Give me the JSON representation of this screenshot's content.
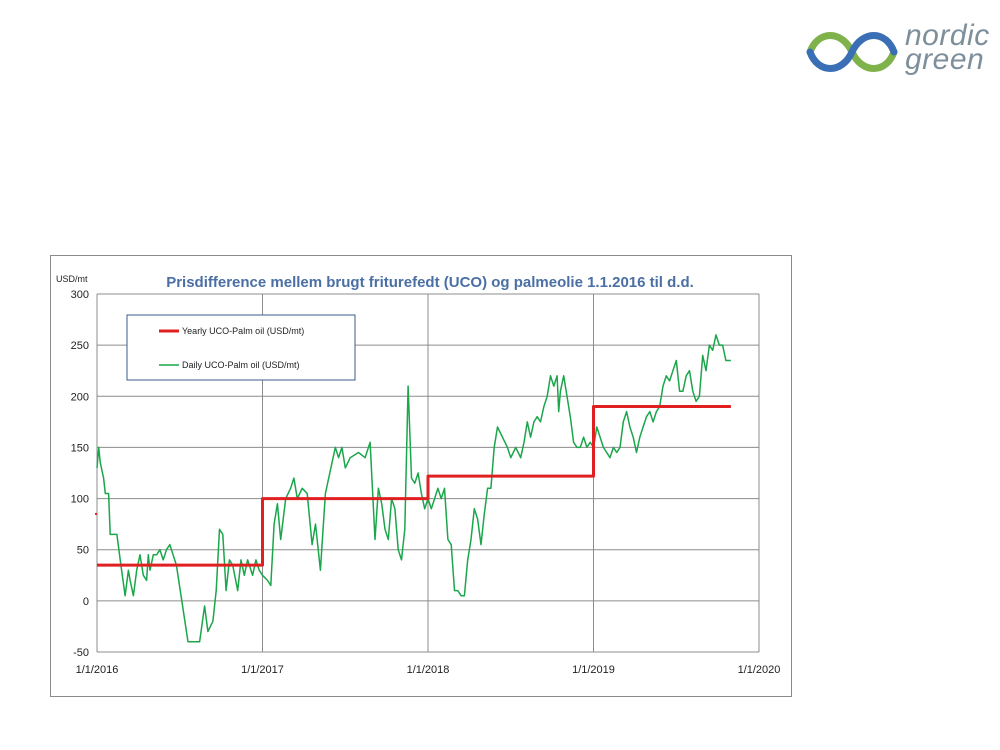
{
  "logo": {
    "line1": "nordic",
    "line2": "green"
  },
  "colors": {
    "yearly": "#e02020",
    "daily": "#1aa64a",
    "title": "#4a6fa5",
    "grid": "#8c8c8c",
    "legend_border": "#3b5b8c"
  },
  "chart_data": {
    "type": "line",
    "title": "Prisdifference mellem brugt friturefedt (UCO) og palmeolie 1.1.2016 til d.d.",
    "ylabel": "USD/mt",
    "xlabel": "",
    "ylim": [
      -50,
      300
    ],
    "yticks": [
      -50,
      0,
      50,
      100,
      150,
      200,
      250,
      300
    ],
    "xlim": [
      2016.0,
      2020.0
    ],
    "xticks": [
      {
        "v": 2016.0,
        "label": "1/1/2016"
      },
      {
        "v": 2017.0,
        "label": "1/1/2017"
      },
      {
        "v": 2018.0,
        "label": "1/1/2018"
      },
      {
        "v": 2019.0,
        "label": "1/1/2019"
      },
      {
        "v": 2020.0,
        "label": "1/1/2020"
      }
    ],
    "grid": true,
    "legend": "top-left",
    "series": [
      {
        "name": "Yearly UCO-Palm oil (USD/mt)",
        "step": true,
        "points": [
          [
            2016.0,
            35
          ],
          [
            2017.0,
            35
          ],
          [
            2017.0,
            100
          ],
          [
            2018.0,
            100
          ],
          [
            2018.0,
            122
          ],
          [
            2019.0,
            122
          ],
          [
            2019.0,
            190
          ],
          [
            2019.83,
            190
          ]
        ]
      },
      {
        "name": "Daily UCO-Palm oil (USD/mt)",
        "points": [
          [
            2016.0,
            130
          ],
          [
            2016.01,
            150
          ],
          [
            2016.02,
            135
          ],
          [
            2016.04,
            120
          ],
          [
            2016.05,
            105
          ],
          [
            2016.07,
            105
          ],
          [
            2016.08,
            65
          ],
          [
            2016.12,
            65
          ],
          [
            2016.14,
            40
          ],
          [
            2016.17,
            5
          ],
          [
            2016.19,
            30
          ],
          [
            2016.2,
            20
          ],
          [
            2016.22,
            5
          ],
          [
            2016.24,
            30
          ],
          [
            2016.26,
            45
          ],
          [
            2016.28,
            25
          ],
          [
            2016.3,
            20
          ],
          [
            2016.31,
            45
          ],
          [
            2016.32,
            30
          ],
          [
            2016.34,
            45
          ],
          [
            2016.36,
            45
          ],
          [
            2016.38,
            50
          ],
          [
            2016.4,
            40
          ],
          [
            2016.42,
            50
          ],
          [
            2016.44,
            55
          ],
          [
            2016.46,
            45
          ],
          [
            2016.48,
            35
          ],
          [
            2016.55,
            -40
          ],
          [
            2016.62,
            -40
          ],
          [
            2016.65,
            -5
          ],
          [
            2016.67,
            -30
          ],
          [
            2016.7,
            -20
          ],
          [
            2016.72,
            10
          ],
          [
            2016.74,
            70
          ],
          [
            2016.76,
            65
          ],
          [
            2016.78,
            10
          ],
          [
            2016.8,
            40
          ],
          [
            2016.82,
            35
          ],
          [
            2016.85,
            10
          ],
          [
            2016.87,
            40
          ],
          [
            2016.89,
            25
          ],
          [
            2016.91,
            40
          ],
          [
            2016.94,
            25
          ],
          [
            2016.96,
            40
          ],
          [
            2016.98,
            30
          ],
          [
            2017.0,
            25
          ],
          [
            2017.03,
            20
          ],
          [
            2017.05,
            15
          ],
          [
            2017.07,
            75
          ],
          [
            2017.09,
            95
          ],
          [
            2017.11,
            60
          ],
          [
            2017.14,
            100
          ],
          [
            2017.17,
            110
          ],
          [
            2017.19,
            120
          ],
          [
            2017.21,
            100
          ],
          [
            2017.24,
            110
          ],
          [
            2017.27,
            105
          ],
          [
            2017.3,
            55
          ],
          [
            2017.32,
            75
          ],
          [
            2017.35,
            30
          ],
          [
            2017.38,
            105
          ],
          [
            2017.4,
            120
          ],
          [
            2017.44,
            150
          ],
          [
            2017.46,
            140
          ],
          [
            2017.48,
            150
          ],
          [
            2017.5,
            130
          ],
          [
            2017.53,
            140
          ],
          [
            2017.58,
            145
          ],
          [
            2017.62,
            140
          ],
          [
            2017.65,
            155
          ],
          [
            2017.68,
            60
          ],
          [
            2017.7,
            110
          ],
          [
            2017.72,
            95
          ],
          [
            2017.74,
            70
          ],
          [
            2017.76,
            60
          ],
          [
            2017.78,
            100
          ],
          [
            2017.8,
            90
          ],
          [
            2017.82,
            50
          ],
          [
            2017.84,
            40
          ],
          [
            2017.86,
            70
          ],
          [
            2017.88,
            210
          ],
          [
            2017.9,
            120
          ],
          [
            2017.92,
            115
          ],
          [
            2017.94,
            125
          ],
          [
            2017.96,
            105
          ],
          [
            2017.98,
            90
          ],
          [
            2018.0,
            100
          ],
          [
            2018.02,
            90
          ],
          [
            2018.04,
            100
          ],
          [
            2018.06,
            110
          ],
          [
            2018.08,
            100
          ],
          [
            2018.1,
            110
          ],
          [
            2018.12,
            60
          ],
          [
            2018.14,
            55
          ],
          [
            2018.16,
            10
          ],
          [
            2018.18,
            10
          ],
          [
            2018.2,
            5
          ],
          [
            2018.22,
            5
          ],
          [
            2018.24,
            40
          ],
          [
            2018.26,
            60
          ],
          [
            2018.28,
            90
          ],
          [
            2018.3,
            80
          ],
          [
            2018.32,
            55
          ],
          [
            2018.34,
            85
          ],
          [
            2018.36,
            110
          ],
          [
            2018.38,
            110
          ],
          [
            2018.4,
            150
          ],
          [
            2018.42,
            170
          ],
          [
            2018.45,
            160
          ],
          [
            2018.48,
            150
          ],
          [
            2018.5,
            140
          ],
          [
            2018.53,
            150
          ],
          [
            2018.56,
            140
          ],
          [
            2018.58,
            155
          ],
          [
            2018.6,
            175
          ],
          [
            2018.62,
            160
          ],
          [
            2018.64,
            175
          ],
          [
            2018.66,
            180
          ],
          [
            2018.68,
            175
          ],
          [
            2018.7,
            190
          ],
          [
            2018.72,
            200
          ],
          [
            2018.74,
            220
          ],
          [
            2018.76,
            210
          ],
          [
            2018.78,
            220
          ],
          [
            2018.79,
            185
          ],
          [
            2018.8,
            205
          ],
          [
            2018.82,
            220
          ],
          [
            2018.84,
            200
          ],
          [
            2018.86,
            180
          ],
          [
            2018.88,
            155
          ],
          [
            2018.9,
            150
          ],
          [
            2018.92,
            150
          ],
          [
            2018.94,
            160
          ],
          [
            2018.96,
            150
          ],
          [
            2018.98,
            155
          ],
          [
            2019.0,
            150
          ],
          [
            2019.02,
            170
          ],
          [
            2019.04,
            160
          ],
          [
            2019.06,
            150
          ],
          [
            2019.08,
            145
          ],
          [
            2019.1,
            140
          ],
          [
            2019.12,
            150
          ],
          [
            2019.14,
            145
          ],
          [
            2019.16,
            150
          ],
          [
            2019.18,
            175
          ],
          [
            2019.2,
            185
          ],
          [
            2019.22,
            170
          ],
          [
            2019.24,
            160
          ],
          [
            2019.26,
            145
          ],
          [
            2019.28,
            160
          ],
          [
            2019.3,
            170
          ],
          [
            2019.32,
            180
          ],
          [
            2019.34,
            185
          ],
          [
            2019.36,
            175
          ],
          [
            2019.38,
            185
          ],
          [
            2019.4,
            190
          ],
          [
            2019.42,
            210
          ],
          [
            2019.44,
            220
          ],
          [
            2019.46,
            215
          ],
          [
            2019.48,
            225
          ],
          [
            2019.5,
            235
          ],
          [
            2019.52,
            205
          ],
          [
            2019.54,
            205
          ],
          [
            2019.56,
            220
          ],
          [
            2019.58,
            225
          ],
          [
            2019.6,
            205
          ],
          [
            2019.62,
            195
          ],
          [
            2019.64,
            200
          ],
          [
            2019.66,
            240
          ],
          [
            2019.68,
            225
          ],
          [
            2019.7,
            250
          ],
          [
            2019.72,
            245
          ],
          [
            2019.74,
            260
          ],
          [
            2019.76,
            250
          ],
          [
            2019.78,
            250
          ],
          [
            2019.8,
            235
          ],
          [
            2019.83,
            235
          ]
        ]
      }
    ]
  }
}
